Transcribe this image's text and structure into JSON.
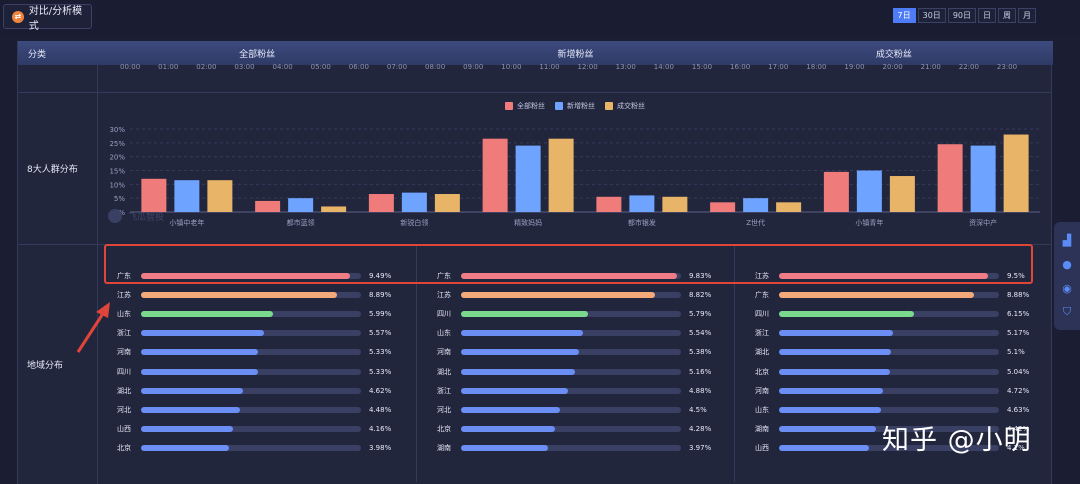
{
  "toolbar": {
    "mode_label": "对比/分析模式",
    "mode_icon": "swap-icon"
  },
  "ranges": [
    {
      "label": "7日",
      "active": true
    },
    {
      "label": "30日",
      "active": false
    },
    {
      "label": "90日",
      "active": false
    },
    {
      "label": "日",
      "active": false
    },
    {
      "label": "周",
      "active": false
    },
    {
      "label": "月",
      "active": false
    }
  ],
  "table": {
    "headers": [
      "分类",
      "全部粉丝",
      "新增粉丝",
      "成交粉丝"
    ],
    "hours": [
      "00:00",
      "01:00",
      "02:00",
      "03:00",
      "04:00",
      "05:00",
      "06:00",
      "07:00",
      "08:00",
      "09:00",
      "10:00",
      "11:00",
      "12:00",
      "13:00",
      "14:00",
      "15:00",
      "16:00",
      "17:00",
      "18:00",
      "19:00",
      "20:00",
      "21:00",
      "22:00",
      "23:00"
    ],
    "row_labels": {
      "crowd": "8大人群分布",
      "region": "地域分布"
    }
  },
  "chart_data": {
    "type": "bar",
    "categories": [
      "小镇中老年",
      "都市蓝领",
      "新锐白领",
      "精致妈妈",
      "都市银发",
      "Z世代",
      "小镇青年",
      "资深中产"
    ],
    "series": [
      {
        "name": "全部粉丝",
        "color": "#ef7b7b",
        "values": [
          12,
          4,
          6.5,
          26.5,
          5.5,
          3.5,
          14.5,
          24.5
        ]
      },
      {
        "name": "新增粉丝",
        "color": "#6ea3ff",
        "values": [
          11.5,
          5,
          7,
          24,
          6,
          5,
          15,
          24
        ]
      },
      {
        "name": "成交粉丝",
        "color": "#e8b467",
        "values": [
          11.5,
          2,
          6.5,
          26.5,
          5.5,
          3.5,
          13,
          28
        ]
      }
    ],
    "yticks": [
      "30%",
      "25%",
      "20%",
      "15%",
      "10%",
      "5%",
      "0%"
    ],
    "ylim": [
      0,
      30
    ],
    "grid": true,
    "legend": "top-center"
  },
  "regions": [
    {
      "column": "全部粉丝",
      "items": [
        {
          "name": "广东",
          "value": 9.49,
          "label": "9.49%",
          "color": "#f07c85"
        },
        {
          "name": "江苏",
          "value": 8.89,
          "label": "8.89%",
          "color": "#f4a97a"
        },
        {
          "name": "山东",
          "value": 5.99,
          "label": "5.99%",
          "color": "#7bd98e"
        },
        {
          "name": "浙江",
          "value": 5.57,
          "label": "5.57%",
          "color": "#6b8ef5"
        },
        {
          "name": "河南",
          "value": 5.33,
          "label": "5.33%",
          "color": "#6b8ef5"
        },
        {
          "name": "四川",
          "value": 5.33,
          "label": "5.33%",
          "color": "#6b8ef5"
        },
        {
          "name": "湖北",
          "value": 4.62,
          "label": "4.62%",
          "color": "#6b8ef5"
        },
        {
          "name": "河北",
          "value": 4.48,
          "label": "4.48%",
          "color": "#6b8ef5"
        },
        {
          "name": "山西",
          "value": 4.16,
          "label": "4.16%",
          "color": "#6b8ef5"
        },
        {
          "name": "北京",
          "value": 3.98,
          "label": "3.98%",
          "color": "#6b8ef5"
        }
      ]
    },
    {
      "column": "新增粉丝",
      "items": [
        {
          "name": "广东",
          "value": 9.83,
          "label": "9.83%",
          "color": "#f07c85"
        },
        {
          "name": "江苏",
          "value": 8.82,
          "label": "8.82%",
          "color": "#f4a97a"
        },
        {
          "name": "四川",
          "value": 5.79,
          "label": "5.79%",
          "color": "#7bd98e"
        },
        {
          "name": "山东",
          "value": 5.54,
          "label": "5.54%",
          "color": "#6b8ef5"
        },
        {
          "name": "河南",
          "value": 5.38,
          "label": "5.38%",
          "color": "#6b8ef5"
        },
        {
          "name": "湖北",
          "value": 5.16,
          "label": "5.16%",
          "color": "#6b8ef5"
        },
        {
          "name": "浙江",
          "value": 4.88,
          "label": "4.88%",
          "color": "#6b8ef5"
        },
        {
          "name": "河北",
          "value": 4.5,
          "label": "4.5%",
          "color": "#6b8ef5"
        },
        {
          "name": "北京",
          "value": 4.28,
          "label": "4.28%",
          "color": "#6b8ef5"
        },
        {
          "name": "湖南",
          "value": 3.97,
          "label": "3.97%",
          "color": "#6b8ef5"
        }
      ]
    },
    {
      "column": "成交粉丝",
      "items": [
        {
          "name": "江苏",
          "value": 9.5,
          "label": "9.5%",
          "color": "#f07c85"
        },
        {
          "name": "广东",
          "value": 8.88,
          "label": "8.88%",
          "color": "#f4a97a"
        },
        {
          "name": "四川",
          "value": 6.15,
          "label": "6.15%",
          "color": "#7bd98e"
        },
        {
          "name": "浙江",
          "value": 5.17,
          "label": "5.17%",
          "color": "#6b8ef5"
        },
        {
          "name": "湖北",
          "value": 5.1,
          "label": "5.1%",
          "color": "#6b8ef5"
        },
        {
          "name": "北京",
          "value": 5.04,
          "label": "5.04%",
          "color": "#6b8ef5"
        },
        {
          "name": "河南",
          "value": 4.72,
          "label": "4.72%",
          "color": "#6b8ef5"
        },
        {
          "name": "山东",
          "value": 4.63,
          "label": "4.63%",
          "color": "#6b8ef5"
        },
        {
          "name": "湖南",
          "value": 4.42,
          "label": "4.42%",
          "color": "#6b8ef5"
        },
        {
          "name": "山西",
          "value": 4.1,
          "label": "4.1%",
          "color": "#6b8ef5"
        }
      ]
    }
  ],
  "watermark": "飞瓜智投",
  "credit": "知乎 @小明",
  "side_dock": [
    "chart-icon",
    "user-add-icon",
    "circle-icon",
    "shield-icon"
  ]
}
